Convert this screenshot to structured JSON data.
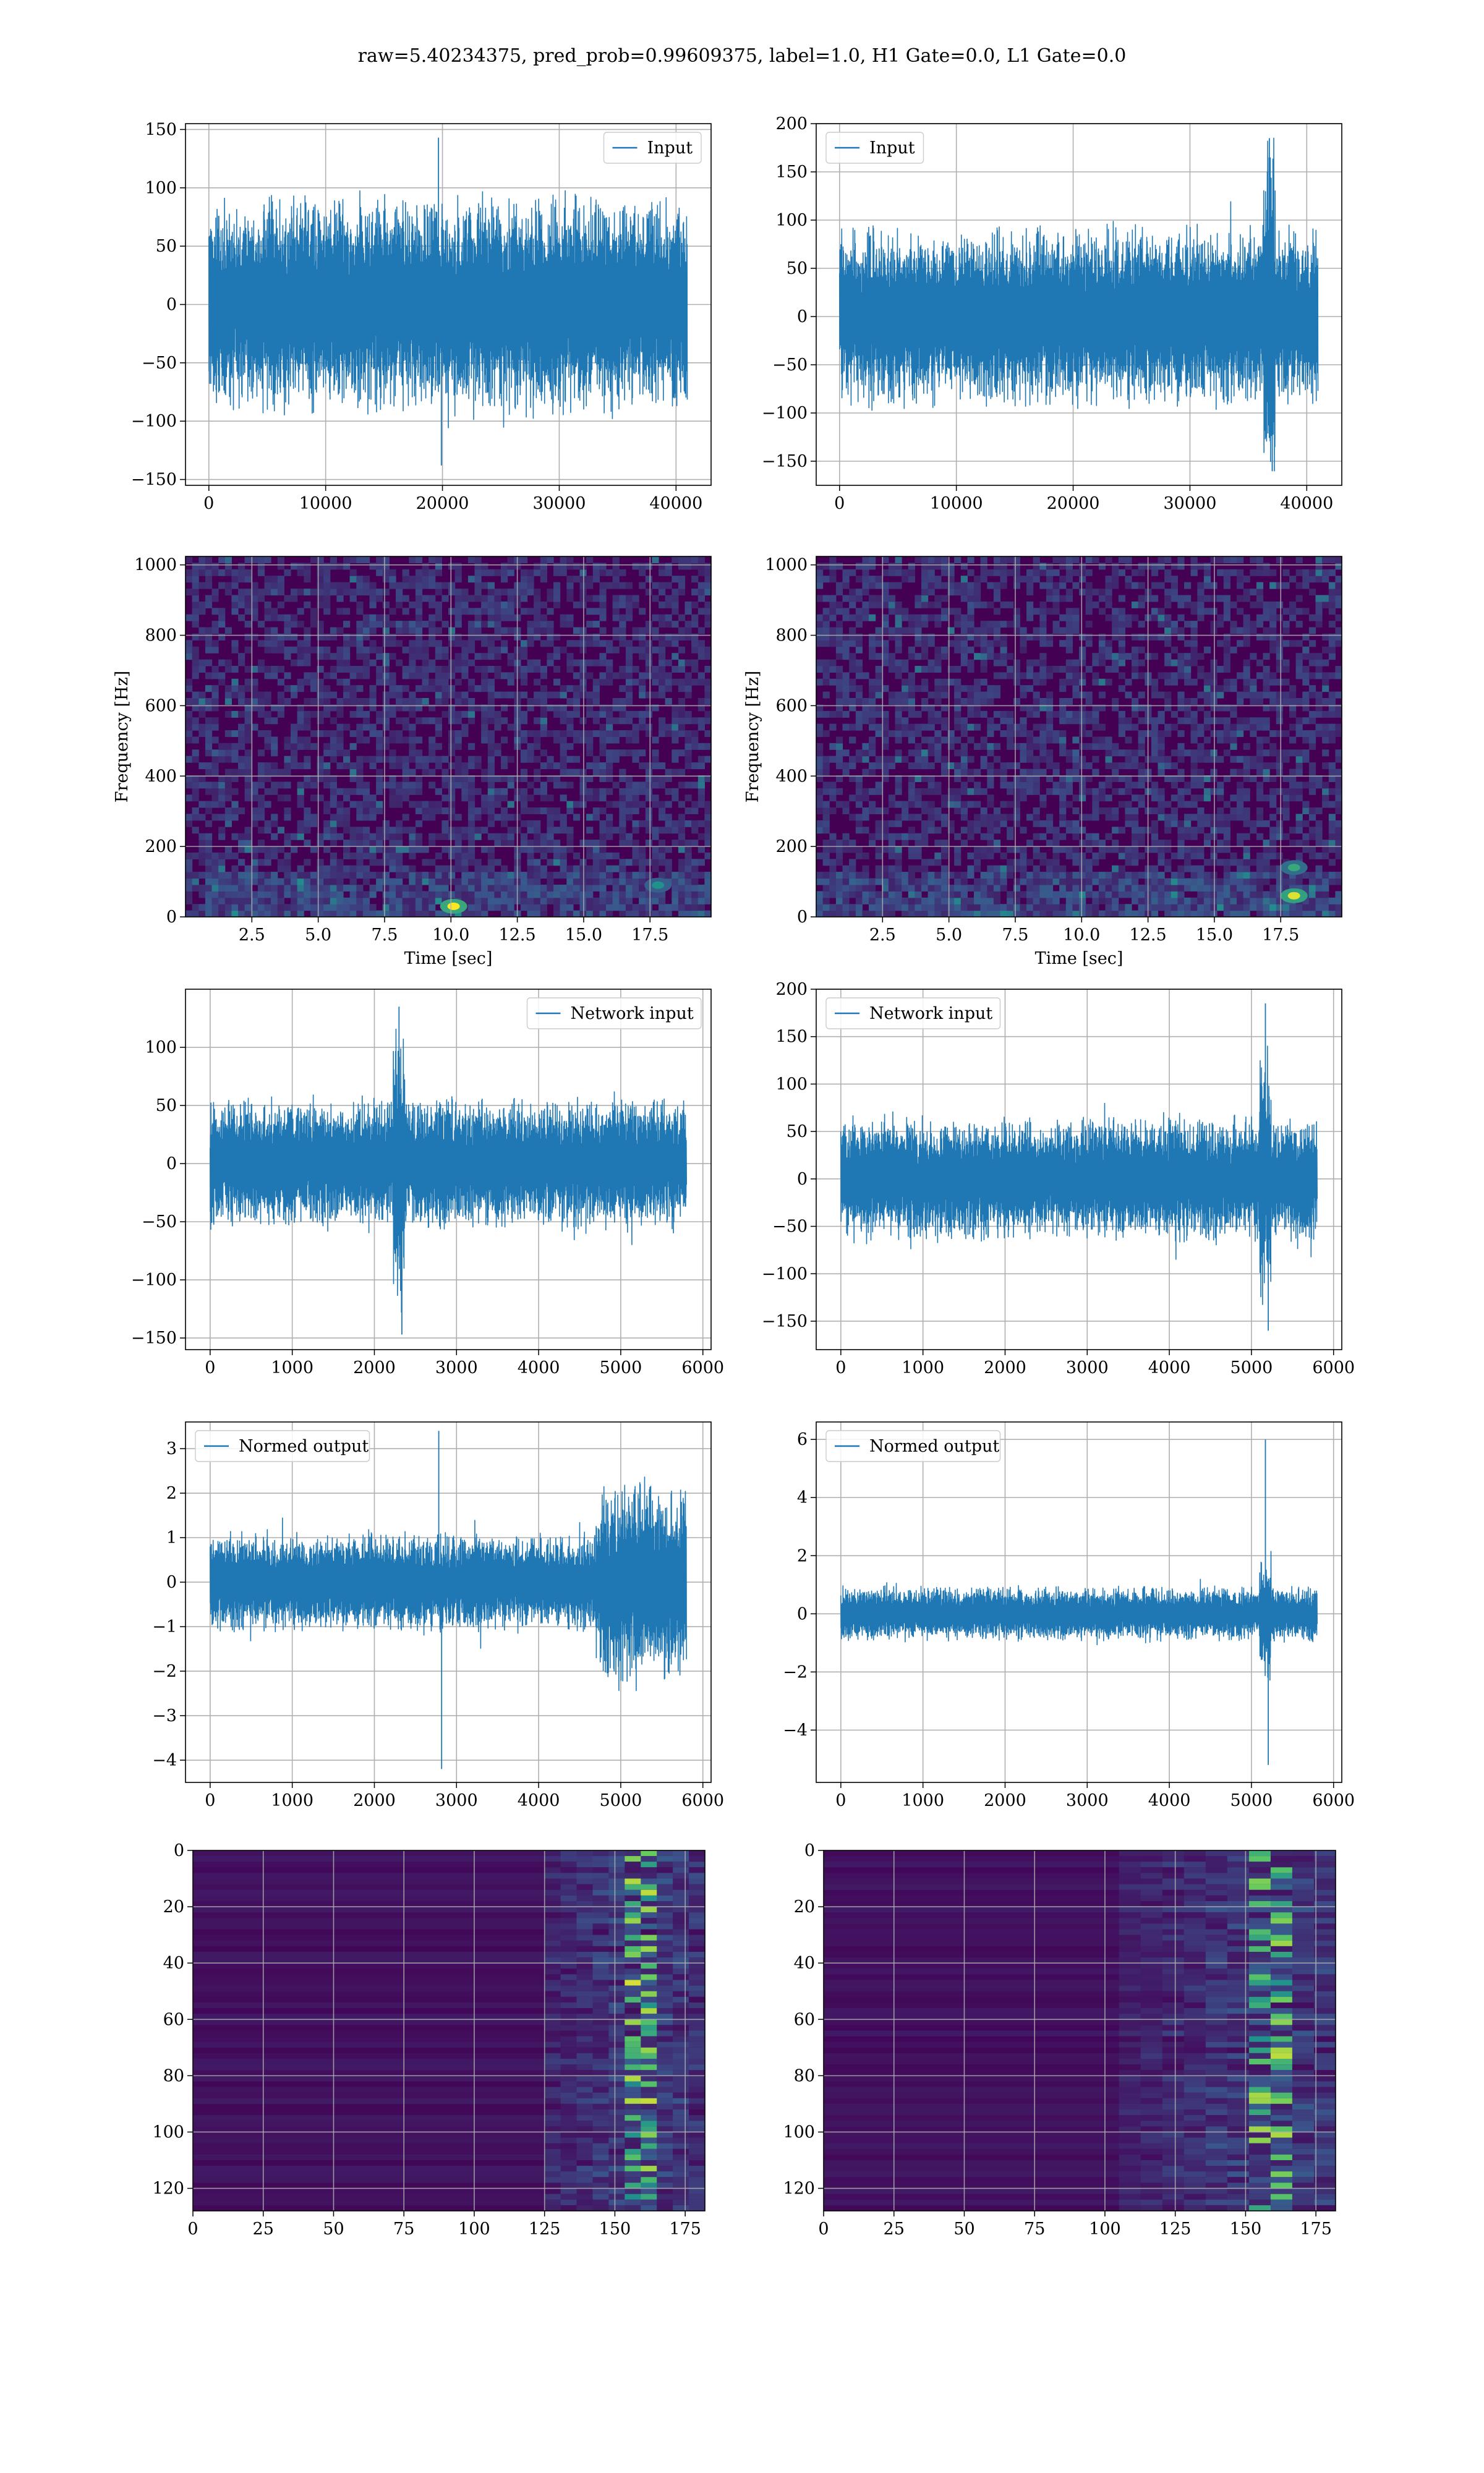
{
  "figure": {
    "suptitle": "raw=5.40234375, pred_prob=0.99609375, label=1.0, H1 Gate=0.0, L1 Gate=0.0"
  },
  "colors": {
    "line": "#1f77b4",
    "grid": "#b0b0b0",
    "viridis_low": "#440154",
    "viridis_mid": "#21918c",
    "viridis_high": "#fde725"
  },
  "chart_data": [
    {
      "id": "h1-input",
      "type": "line",
      "series": [
        {
          "name": "Input",
          "x_range": [
            0,
            40960
          ],
          "amplitude_band": [
            -100,
            100
          ],
          "peak_max": 143,
          "peak_min": -138
        }
      ],
      "legend": "top-right",
      "xlim": [
        -2000,
        43000
      ],
      "ylim": [
        -155,
        155
      ],
      "grid": true,
      "xticks": [
        0,
        10000,
        20000,
        30000,
        40000
      ],
      "yticks": [
        -150,
        -100,
        -50,
        0,
        50,
        100,
        150
      ],
      "xlabel": "",
      "ylabel": ""
    },
    {
      "id": "l1-input",
      "type": "line",
      "series": [
        {
          "name": "Input",
          "x_range": [
            0,
            40960
          ],
          "amplitude_band": [
            -100,
            100
          ],
          "peak_max": 185,
          "peak_min": -160,
          "spike_x": 36800
        }
      ],
      "legend": "top-left",
      "xlim": [
        -2000,
        43000
      ],
      "ylim": [
        -175,
        200
      ],
      "grid": true,
      "xticks": [
        0,
        10000,
        20000,
        30000,
        40000
      ],
      "yticks": [
        -150,
        -100,
        -50,
        0,
        50,
        100,
        150,
        200
      ],
      "xlabel": "",
      "ylabel": ""
    },
    {
      "id": "h1-spectrogram",
      "type": "heatmap",
      "xlabel": "Time [sec]",
      "ylabel": "Frequency [Hz]",
      "xlim": [
        0,
        19.8
      ],
      "ylim": [
        0,
        1024
      ],
      "grid": true,
      "xticks": [
        2.5,
        5.0,
        7.5,
        10.0,
        12.5,
        15.0,
        17.5
      ],
      "xtick_labels": [
        "2.5",
        "5.0",
        "7.5",
        "10.0",
        "12.5",
        "15.0",
        "17.5"
      ],
      "yticks": [
        0,
        200,
        400,
        600,
        800,
        1000
      ],
      "hotspots": [
        {
          "t": 10.1,
          "f": 30,
          "intensity": 1.0
        },
        {
          "t": 17.8,
          "f": 90,
          "intensity": 0.5
        }
      ]
    },
    {
      "id": "l1-spectrogram",
      "type": "heatmap",
      "xlabel": "Time [sec]",
      "ylabel": "Frequency [Hz]",
      "xlim": [
        0,
        19.8
      ],
      "ylim": [
        0,
        1024
      ],
      "grid": true,
      "xticks": [
        2.5,
        5.0,
        7.5,
        10.0,
        12.5,
        15.0,
        17.5
      ],
      "xtick_labels": [
        "2.5",
        "5.0",
        "7.5",
        "10.0",
        "12.5",
        "15.0",
        "17.5"
      ],
      "yticks": [
        0,
        200,
        400,
        600,
        800,
        1000
      ],
      "hotspots": [
        {
          "t": 18.0,
          "f": 60,
          "intensity": 0.95
        },
        {
          "t": 18.0,
          "f": 140,
          "intensity": 0.6
        }
      ]
    },
    {
      "id": "h1-network-input",
      "type": "line",
      "series": [
        {
          "name": "Network input",
          "x_range": [
            0,
            5800
          ],
          "amplitude_band": [
            -60,
            60
          ],
          "peak_max": 135,
          "peak_min": -147,
          "spike_x": 2300
        }
      ],
      "legend": "top-right",
      "xlim": [
        -300,
        6100
      ],
      "ylim": [
        -160,
        150
      ],
      "grid": true,
      "xticks": [
        0,
        1000,
        2000,
        3000,
        4000,
        5000,
        6000
      ],
      "yticks": [
        -150,
        -100,
        -50,
        0,
        50,
        100
      ],
      "xlabel": "",
      "ylabel": ""
    },
    {
      "id": "l1-network-input",
      "type": "line",
      "series": [
        {
          "name": "Network input",
          "x_range": [
            0,
            5800
          ],
          "amplitude_band": [
            -70,
            70
          ],
          "peak_max": 185,
          "peak_min": -160,
          "spike_x": 5170
        }
      ],
      "legend": "top-left",
      "xlim": [
        -300,
        6100
      ],
      "ylim": [
        -180,
        200
      ],
      "grid": true,
      "xticks": [
        0,
        1000,
        2000,
        3000,
        4000,
        5000,
        6000
      ],
      "yticks": [
        -150,
        -100,
        -50,
        0,
        50,
        100,
        150,
        200
      ],
      "xlabel": "",
      "ylabel": ""
    },
    {
      "id": "h1-normed-output",
      "type": "line",
      "series": [
        {
          "name": "Normed output",
          "x_range": [
            0,
            5800
          ],
          "amplitude_band": [
            -1.2,
            1.2
          ],
          "peak_max": 3.4,
          "peak_min": -4.2,
          "burst_start_x": 4700
        }
      ],
      "legend": "top-left",
      "xlim": [
        -300,
        6100
      ],
      "ylim": [
        -4.5,
        3.6
      ],
      "grid": true,
      "xticks": [
        0,
        1000,
        2000,
        3000,
        4000,
        5000,
        6000
      ],
      "yticks": [
        -4,
        -3,
        -2,
        -1,
        0,
        1,
        2,
        3
      ],
      "xlabel": "",
      "ylabel": ""
    },
    {
      "id": "l1-normed-output",
      "type": "line",
      "series": [
        {
          "name": "Normed output",
          "x_range": [
            0,
            5800
          ],
          "amplitude_band": [
            -1.0,
            1.0
          ],
          "peak_max": 6.0,
          "peak_min": -5.2,
          "spike_x": 5170
        }
      ],
      "legend": "top-left",
      "xlim": [
        -300,
        6100
      ],
      "ylim": [
        -5.8,
        6.6
      ],
      "grid": true,
      "xticks": [
        0,
        1000,
        2000,
        3000,
        4000,
        5000,
        6000
      ],
      "yticks": [
        -4,
        -2,
        0,
        2,
        4,
        6
      ],
      "xlabel": "",
      "ylabel": ""
    },
    {
      "id": "h1-feature-map",
      "type": "heatmap",
      "xlim": [
        0,
        182
      ],
      "ylim": [
        128,
        0
      ],
      "grid": true,
      "xticks": [
        0,
        25,
        50,
        75,
        100,
        125,
        150,
        175
      ],
      "yticks": [
        0,
        20,
        40,
        60,
        80,
        100,
        120
      ],
      "xlabel": "",
      "ylabel": "",
      "active_columns": [
        125,
        182
      ],
      "peak_column": 160
    },
    {
      "id": "l1-feature-map",
      "type": "heatmap",
      "xlim": [
        0,
        182
      ],
      "ylim": [
        128,
        0
      ],
      "grid": true,
      "xticks": [
        0,
        25,
        50,
        75,
        100,
        125,
        150,
        175
      ],
      "yticks": [
        0,
        20,
        40,
        60,
        80,
        100,
        120
      ],
      "xlabel": "",
      "ylabel": "",
      "active_columns": [
        105,
        182
      ],
      "peak_column": 160
    }
  ]
}
